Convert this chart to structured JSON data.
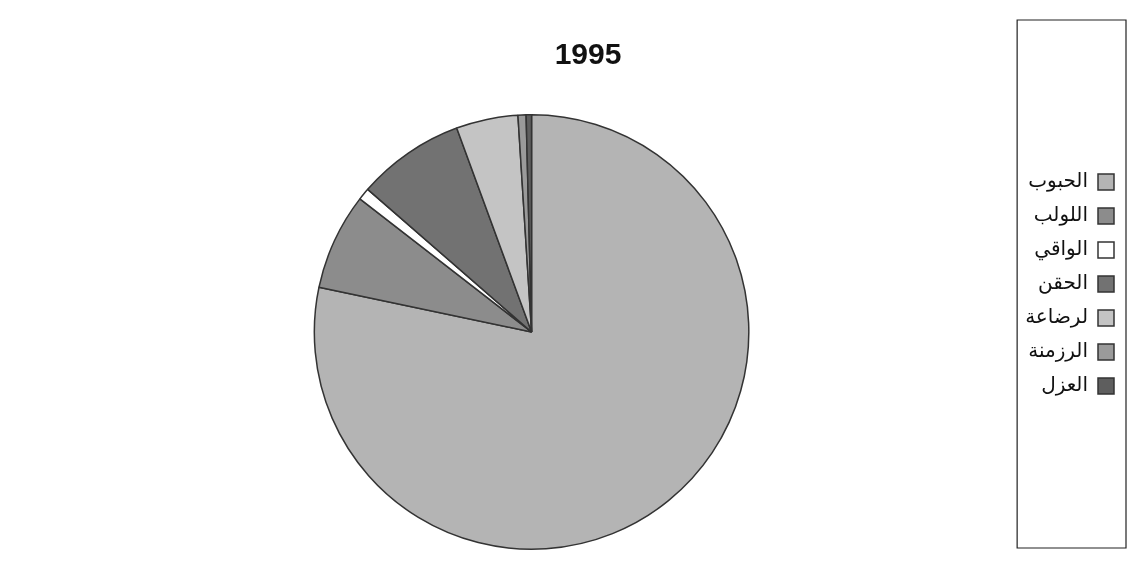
{
  "chart_data": {
    "type": "pie",
    "title": "1995",
    "categories": [
      "الحبوب",
      "اللولب",
      "الواقي",
      "الحقن",
      "لرضاعة",
      "الرزمنة",
      "العزل"
    ],
    "values": [
      78.3,
      7.2,
      0.9,
      8.0,
      4.6,
      0.6,
      0.4
    ],
    "colors": [
      "#b4b4b4",
      "#8c8c8c",
      "#ffffff",
      "#727272",
      "#c4c4c4",
      "#9a9a9a",
      "#5e5e5e"
    ],
    "legend": "right"
  }
}
